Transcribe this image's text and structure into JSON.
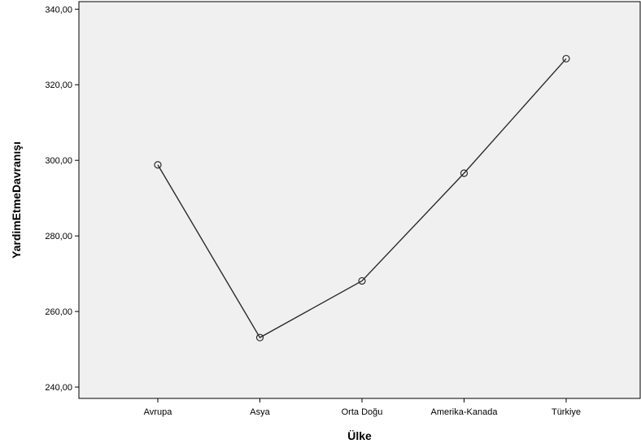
{
  "chart_data": {
    "type": "line",
    "xlabel": "Ülke",
    "ylabel": "YardimEtmeDavranışı",
    "categories": [
      "Avrupa",
      "Asya",
      "Orta Doğu",
      "Amerika-Kanada",
      "Türkiye"
    ],
    "series": [
      {
        "values": [
          298.8,
          253.1,
          268.1,
          296.6,
          326.9
        ]
      }
    ],
    "ylim": [
      237,
      342
    ],
    "yticks": [
      240,
      260,
      280,
      300,
      320,
      340
    ],
    "ytick_labels": [
      "240,00",
      "260,00",
      "280,00",
      "300,00",
      "320,00",
      "340,00"
    ],
    "grid": false,
    "legend": "none",
    "colors": {
      "plot_background": "#f0f0f0",
      "line": "#2b2b2b",
      "axis": "#000000"
    }
  }
}
